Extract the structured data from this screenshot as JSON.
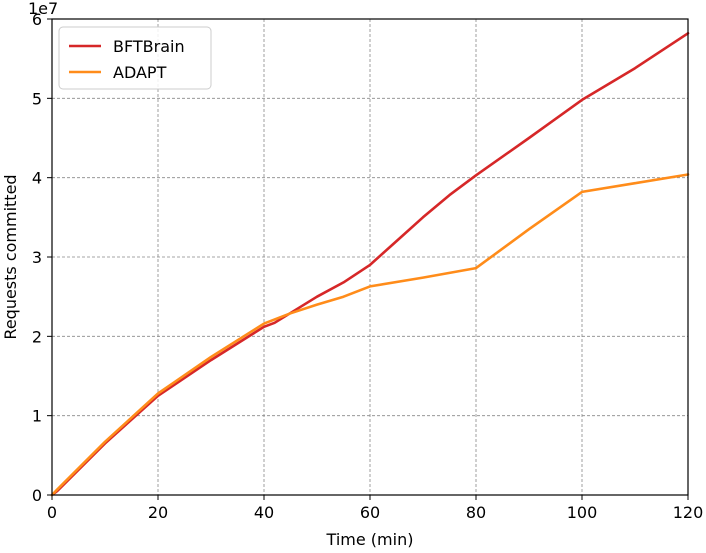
{
  "chart_data": {
    "type": "line",
    "title": "",
    "xlabel": "Time (min)",
    "ylabel": "Requests committed",
    "y_scale_label": "1e7",
    "xlim": [
      0,
      120
    ],
    "ylim": [
      0,
      6
    ],
    "xticks": [
      0,
      20,
      40,
      60,
      80,
      100,
      120
    ],
    "yticks": [
      0,
      1,
      2,
      3,
      4,
      5,
      6
    ],
    "y_multiplier": 10000000,
    "grid": true,
    "legend_position": "top-left",
    "series": [
      {
        "name": "BFTBrain",
        "color": "#d62728",
        "x": [
          0,
          1,
          10,
          20,
          30,
          40,
          42,
          50,
          55,
          60,
          65,
          70,
          75,
          80,
          90,
          100,
          110,
          120
        ],
        "y": [
          0,
          0.05,
          0.65,
          1.25,
          1.7,
          2.12,
          2.17,
          2.5,
          2.68,
          2.9,
          3.2,
          3.5,
          3.78,
          4.03,
          4.5,
          4.98,
          5.38,
          5.82
        ]
      },
      {
        "name": "ADAPT",
        "color": "#ff8c1a",
        "x": [
          0,
          1,
          10,
          20,
          30,
          40,
          45,
          50,
          55,
          60,
          70,
          80,
          90,
          100,
          110,
          120
        ],
        "y": [
          0,
          0.07,
          0.67,
          1.28,
          1.74,
          2.16,
          2.29,
          2.4,
          2.5,
          2.63,
          2.74,
          2.86,
          3.35,
          3.82,
          3.93,
          4.04
        ]
      }
    ]
  }
}
